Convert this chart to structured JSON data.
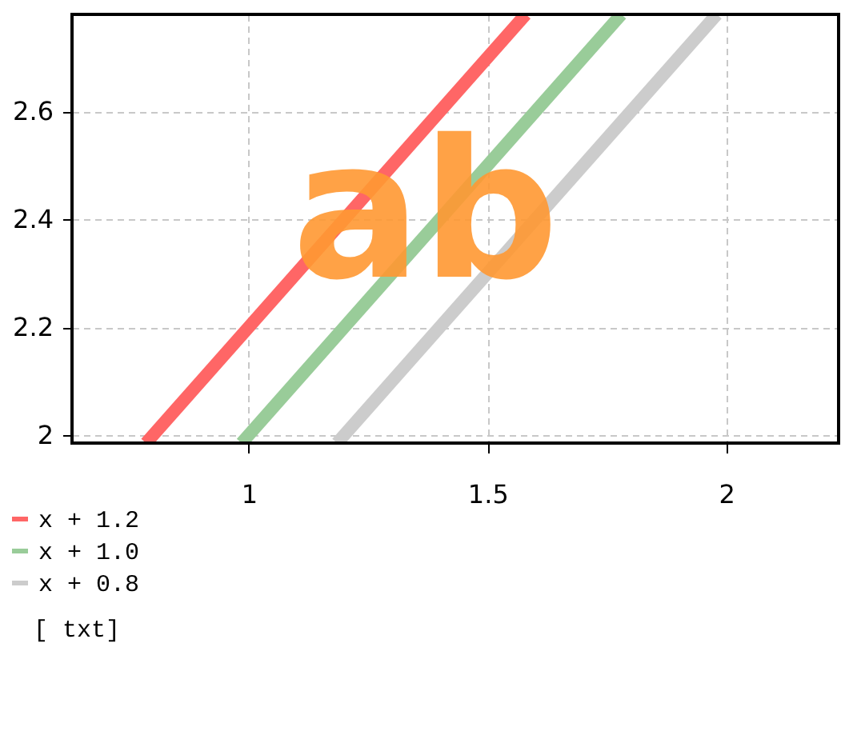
{
  "chart_data": {
    "type": "line",
    "series": [
      {
        "name": "x + 1.2",
        "color": "#ff6666",
        "x": [
          0.785,
          1.58
        ],
        "values": [
          1.985,
          2.78
        ]
      },
      {
        "name": "x + 1.0",
        "color": "#99cc99",
        "x": [
          0.985,
          1.78
        ],
        "values": [
          1.985,
          2.78
        ]
      },
      {
        "name": "x + 0.8",
        "color": "#cccccc",
        "x": [
          1.185,
          1.98
        ],
        "values": [
          1.985,
          2.78
        ]
      }
    ],
    "annotations": [
      {
        "text": "ab",
        "x": 1.37,
        "y": 2.4
      },
      "[ txt]"
    ],
    "xlim": [
      0.63,
      2.235
    ],
    "ylim": [
      1.985,
      2.78
    ],
    "xticks": [
      1,
      1.5,
      2
    ],
    "yticks": [
      2,
      2.2,
      2.4,
      2.6
    ],
    "grid": true,
    "legend": "bottom left",
    "marker": "none",
    "line_style": "solid"
  }
}
